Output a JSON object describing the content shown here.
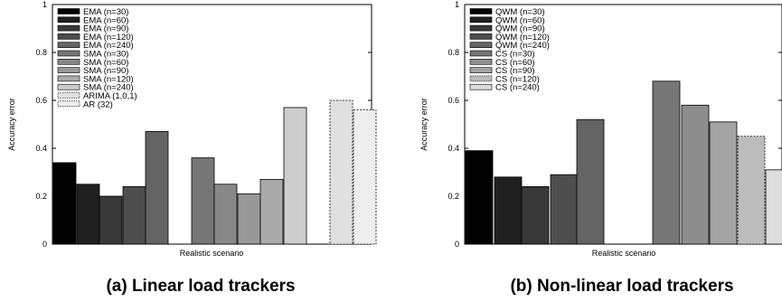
{
  "chart_data": [
    {
      "type": "bar",
      "caption": "(a) Linear load trackers",
      "xlabel": "Realistic scenario",
      "ylabel": "Accuracy error",
      "ylim": [
        0,
        1
      ],
      "yticks": [
        "0",
        "0.2",
        "0.4",
        "0.6",
        "0.8",
        "1"
      ],
      "grid": false,
      "legend_position": "top-left",
      "series": [
        {
          "name": "EMA (n=30)",
          "value": 0.34,
          "color": "#000000",
          "dash": false
        },
        {
          "name": "EMA (n=60)",
          "value": 0.25,
          "color": "#202020",
          "dash": false
        },
        {
          "name": "EMA (n=90)",
          "value": 0.2,
          "color": "#383838",
          "dash": false
        },
        {
          "name": "EMA (n=120)",
          "value": 0.24,
          "color": "#4e4e4e",
          "dash": false
        },
        {
          "name": "EMA (n=240)",
          "value": 0.47,
          "color": "#646464",
          "dash": false
        },
        {
          "name": "SMA (n=30)",
          "value": 0.36,
          "color": "#767676",
          "dash": false
        },
        {
          "name": "SMA (n=60)",
          "value": 0.25,
          "color": "#888888",
          "dash": false
        },
        {
          "name": "SMA (n=90)",
          "value": 0.21,
          "color": "#999999",
          "dash": false
        },
        {
          "name": "SMA (n=120)",
          "value": 0.27,
          "color": "#aaaaaa",
          "dash": false
        },
        {
          "name": "SMA (n=240)",
          "value": 0.57,
          "color": "#cdcdcd",
          "dash": false
        },
        {
          "name": "ARIMA (1,0,1)",
          "value": 0.6,
          "color": "#e0e0e0",
          "dash": true
        },
        {
          "name": "AR (32)",
          "value": 0.56,
          "color": "#eeeeee",
          "dash": true
        }
      ]
    },
    {
      "type": "bar",
      "caption": "(b) Non-linear load trackers",
      "xlabel": "Realistic scenario",
      "ylabel": "Accuracy error",
      "ylim": [
        0,
        1
      ],
      "yticks": [
        "0",
        "0.2",
        "0.4",
        "0.6",
        "0.8",
        "1"
      ],
      "grid": false,
      "legend_position": "top-left",
      "series": [
        {
          "name": "QWM (n=30)",
          "value": 0.39,
          "color": "#000000",
          "dash": false
        },
        {
          "name": "QWM (n=60)",
          "value": 0.28,
          "color": "#202020",
          "dash": false
        },
        {
          "name": "QWM (n=90)",
          "value": 0.24,
          "color": "#383838",
          "dash": false
        },
        {
          "name": "QWM (n=120)",
          "value": 0.29,
          "color": "#4e4e4e",
          "dash": false
        },
        {
          "name": "QWM (n=240)",
          "value": 0.52,
          "color": "#646464",
          "dash": false
        },
        {
          "name": "CS (n=30)",
          "value": 0.68,
          "color": "#767676",
          "dash": false
        },
        {
          "name": "CS (n=60)",
          "value": 0.58,
          "color": "#8e8e8e",
          "dash": false
        },
        {
          "name": "CS (n=90)",
          "value": 0.51,
          "color": "#a4a4a4",
          "dash": false
        },
        {
          "name": "CS (n=120)",
          "value": 0.45,
          "color": "#bcbcbc",
          "dash": true
        },
        {
          "name": "CS (n=240)",
          "value": 0.31,
          "color": "#dddddd",
          "dash": false
        }
      ]
    }
  ]
}
